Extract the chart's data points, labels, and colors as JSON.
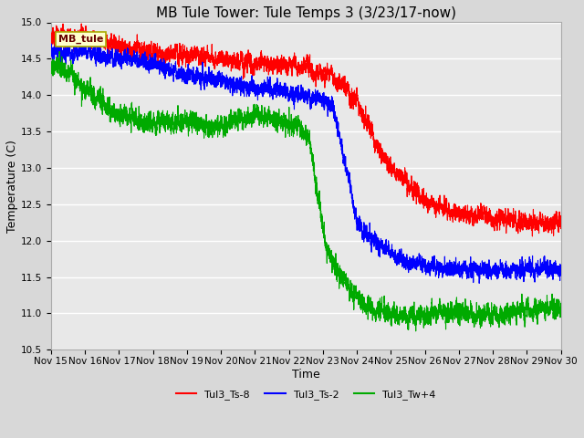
{
  "title": "MB Tule Tower: Tule Temps 3 (3/23/17-now)",
  "xlabel": "Time",
  "ylabel": "Temperature (C)",
  "ylim": [
    10.5,
    15.0
  ],
  "yticks": [
    10.5,
    11.0,
    11.5,
    12.0,
    12.5,
    13.0,
    13.5,
    14.0,
    14.5,
    15.0
  ],
  "xlim": [
    0,
    15
  ],
  "xtick_labels": [
    "Nov 15",
    "Nov 16",
    "Nov 17",
    "Nov 18",
    "Nov 19",
    "Nov 20",
    "Nov 21",
    "Nov 22",
    "Nov 23",
    "Nov 24",
    "Nov 25",
    "Nov 26",
    "Nov 27",
    "Nov 28",
    "Nov 29",
    "Nov 30"
  ],
  "legend_label": "MB_tule",
  "series_labels": [
    "Tul3_Ts-8",
    "Tul3_Ts-2",
    "Tul3_Tw+4"
  ],
  "series_colors": [
    "#ff0000",
    "#0000ff",
    "#00aa00"
  ],
  "line_width": 0.8,
  "bg_color": "#d8d8d8",
  "plot_bg_color": "#e8e8e8",
  "grid_color": "#ffffff",
  "title_fontsize": 11,
  "axis_label_fontsize": 9,
  "tick_fontsize": 7.5,
  "legend_box_color": "#ffffcc",
  "legend_box_edge": "#aaaa00"
}
